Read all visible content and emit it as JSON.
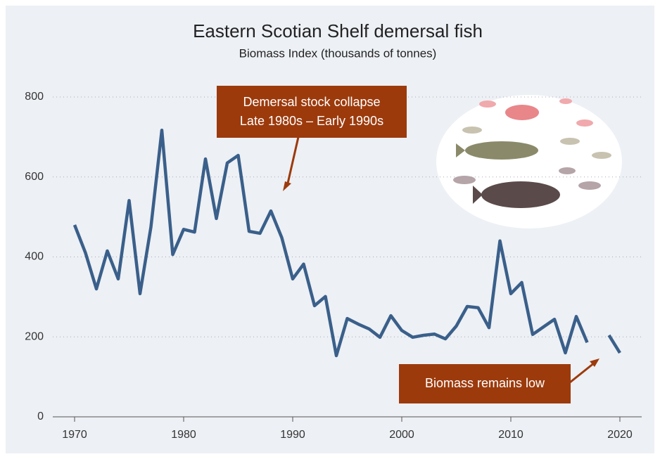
{
  "chart_data": {
    "type": "line",
    "title": "Eastern Scotian Shelf demersal fish",
    "subtitle": "Biomass Index (thousands of tonnes)",
    "x": [
      1970,
      1971,
      1972,
      1973,
      1974,
      1975,
      1976,
      1977,
      1978,
      1979,
      1980,
      1981,
      1982,
      1983,
      1984,
      1985,
      1986,
      1987,
      1988,
      1989,
      1990,
      1991,
      1992,
      1993,
      1994,
      1995,
      1996,
      1997,
      1998,
      1999,
      2000,
      2001,
      2002,
      2003,
      2004,
      2005,
      2006,
      2007,
      2008,
      2009,
      2010,
      2011,
      2012,
      2013,
      2014,
      2015,
      2016,
      2017,
      2018,
      2019,
      2020
    ],
    "values": [
      480,
      410,
      320,
      415,
      345,
      541,
      308,
      475,
      717,
      406,
      469,
      462,
      645,
      496,
      635,
      654,
      464,
      459,
      515,
      448,
      345,
      382,
      278,
      301,
      153,
      246,
      232,
      220,
      199,
      253,
      216,
      199,
      204,
      207,
      195,
      227,
      276,
      273,
      223,
      440,
      308,
      336,
      206,
      225,
      244,
      160,
      251,
      186,
      null,
      204,
      160
    ],
    "color": "#3a5f8a",
    "xlim": [
      1968,
      2022
    ],
    "xticks": [
      1970,
      1980,
      1990,
      2000,
      2010,
      2020
    ],
    "ylim": [
      0,
      800
    ],
    "yticks": [
      0,
      200,
      400,
      600,
      800
    ],
    "grid": true,
    "annotations": [
      "Demersal stock collapse",
      "Late 1980s – Early 1990s",
      "Biomass remains low"
    ]
  }
}
